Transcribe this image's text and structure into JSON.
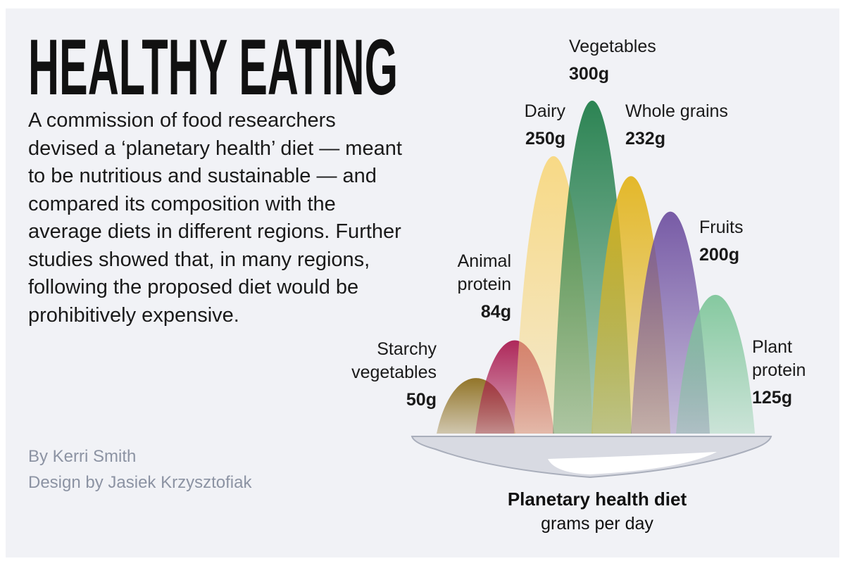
{
  "title": "HEALTHY EATING",
  "description": "A commission of food researchers devised a ‘planetary health’ diet — meant to be nutritious and sustainable — and compared its composition with the average diets in different regions. Further studies showed that, in many regions, following the proposed diet would be prohibitively expensive.",
  "byline": "By Kerri Smith",
  "design_credit": "Design by Jasiek Krzysztofiak",
  "chart_data": {
    "type": "peak",
    "title": "Planetary health diet",
    "subtitle": "grams per day",
    "categories": [
      "Starchy vegetables",
      "Animal protein",
      "Dairy",
      "Vegetables",
      "Whole grains",
      "Fruits",
      "Plant protein"
    ],
    "values": [
      50,
      84,
      250,
      300,
      232,
      200,
      125
    ],
    "value_labels": [
      "50g",
      "84g",
      "250g",
      "300g",
      "232g",
      "200g",
      "125g"
    ],
    "colors": [
      "#8a6a17",
      "#a8164c",
      "#f8d77c",
      "#1b7a45",
      "#e2b318",
      "#6d4e9f",
      "#7cc598"
    ]
  }
}
